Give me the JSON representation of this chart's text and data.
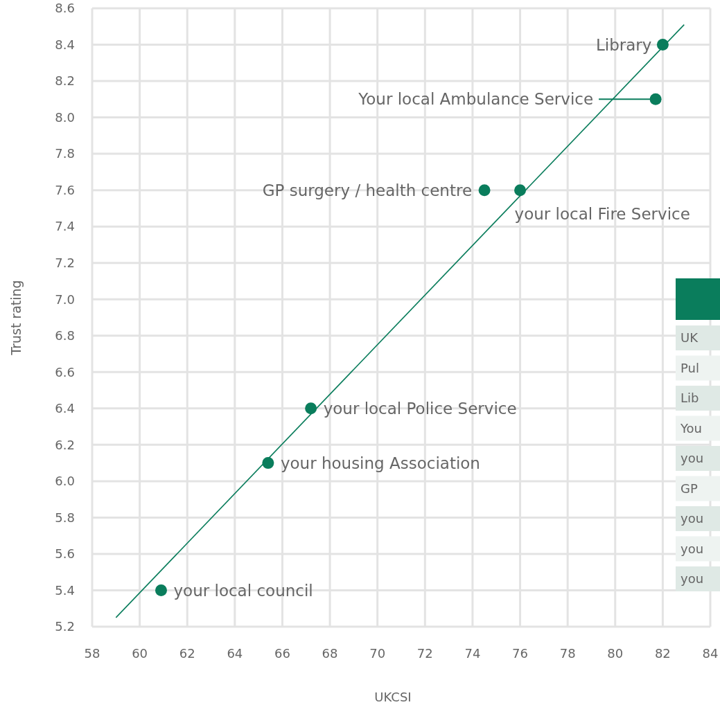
{
  "chart_data": {
    "type": "scatter",
    "xlabel": "UKCSI",
    "ylabel": "Trust rating",
    "xlim": [
      58,
      84
    ],
    "xticks": [
      58,
      60,
      62,
      64,
      66,
      68,
      70,
      72,
      74,
      76,
      78,
      80,
      82,
      84
    ],
    "ylim": [
      5.2,
      8.6
    ],
    "yticks": [
      {
        "value": 5.2,
        "label": "5.2"
      },
      {
        "value": 5.4,
        "label": "5.4"
      },
      {
        "value": 5.6,
        "label": "5.6"
      },
      {
        "value": 5.8,
        "label": "5.8"
      },
      {
        "value": 6.0,
        "label": "6.0"
      },
      {
        "value": 6.2,
        "label": "6.2"
      },
      {
        "value": 6.4,
        "label": "6.4"
      },
      {
        "value": 6.6,
        "label": "6.6"
      },
      {
        "value": 6.8,
        "label": "6.8"
      },
      {
        "value": 7.0,
        "label": "7.0"
      },
      {
        "value": 7.2,
        "label": "7.2"
      },
      {
        "value": 7.4,
        "label": "7.4"
      },
      {
        "value": 7.6,
        "label": "7.6"
      },
      {
        "value": 7.8,
        "label": "7.8"
      },
      {
        "value": 8.0,
        "label": "8.0"
      },
      {
        "value": 8.2,
        "label": "8.2"
      },
      {
        "value": 8.4,
        "label": "8.4"
      },
      {
        "value": 8.6,
        "label": "8.6"
      }
    ],
    "grid": true,
    "series": [
      {
        "marker": "circle",
        "color": "#0a7d5c",
        "x": [
          82,
          81.7,
          74.5,
          76,
          67.2,
          65.4,
          60.9
        ],
        "values": [
          8.4,
          8.1,
          7.6,
          7.6,
          6.4,
          6.1,
          5.4
        ]
      },
      {
        "type": "line",
        "marker": "none",
        "color": "#0a7d5c",
        "x": [
          59,
          82.9
        ],
        "values": [
          5.25,
          8.51
        ]
      }
    ],
    "annotations": [
      {
        "text": "Library",
        "x": 82,
        "y": 8.4
      },
      {
        "text": "GP surgery / health centre",
        "x": 74.5,
        "y": 7.6
      },
      {
        "text": "your local Fire Service",
        "x": 76,
        "y": 7.6
      },
      {
        "text": "your local Police Service",
        "x": 67.2,
        "y": 6.4
      },
      {
        "text": "your housing Association",
        "x": 65.4,
        "y": 6.1
      },
      {
        "text": "your local council",
        "x": 60.9,
        "y": 5.4
      },
      "Your local Ambulance Service",
      "UK",
      "Pul",
      "Lib",
      "You",
      "you",
      "GP",
      "you",
      "you",
      "you"
    ]
  }
}
